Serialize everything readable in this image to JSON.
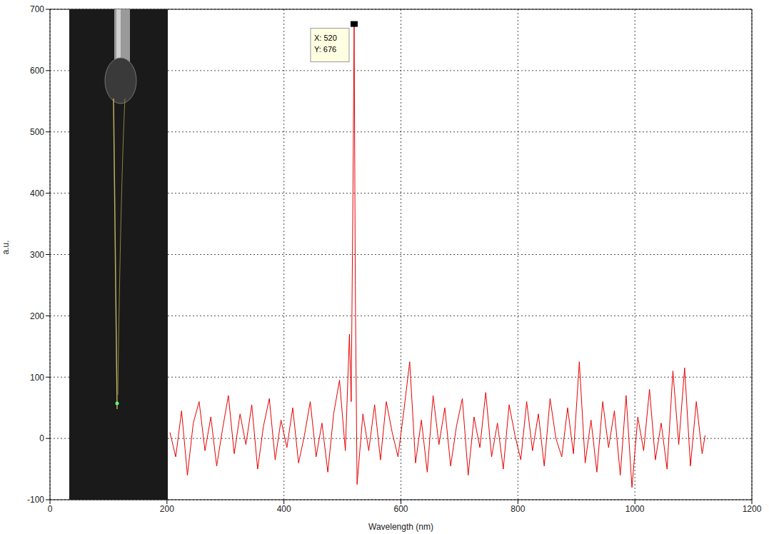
{
  "chart_data": {
    "type": "line",
    "x_label": "Wavelength (nm)",
    "y_label": "a.u.",
    "xlim": [
      0,
      1200
    ],
    "xticks": [
      0,
      200,
      400,
      600,
      800,
      1000,
      1200
    ],
    "ylim": [
      -100,
      700
    ],
    "yticks": [
      -100,
      0,
      100,
      200,
      300,
      400,
      500,
      600,
      700
    ],
    "grid": true,
    "color": "#e60000",
    "x": [
      205,
      215,
      225,
      235,
      245,
      255,
      265,
      275,
      285,
      295,
      305,
      315,
      325,
      335,
      345,
      355,
      365,
      375,
      385,
      395,
      405,
      415,
      425,
      435,
      445,
      455,
      465,
      475,
      485,
      495,
      505,
      512,
      515,
      518,
      520,
      522,
      525,
      535,
      545,
      555,
      565,
      575,
      585,
      595,
      605,
      615,
      625,
      635,
      645,
      655,
      665,
      675,
      685,
      695,
      705,
      715,
      725,
      735,
      745,
      755,
      765,
      775,
      785,
      795,
      805,
      815,
      825,
      835,
      845,
      855,
      865,
      875,
      885,
      895,
      905,
      915,
      925,
      935,
      945,
      955,
      965,
      975,
      985,
      995,
      1005,
      1015,
      1025,
      1035,
      1045,
      1055,
      1065,
      1075,
      1085,
      1095,
      1105,
      1115,
      1120
    ],
    "values": [
      10,
      -30,
      45,
      -60,
      25,
      60,
      -20,
      35,
      -45,
      15,
      70,
      -25,
      40,
      -10,
      55,
      -50,
      20,
      65,
      -35,
      30,
      -15,
      50,
      -40,
      5,
      60,
      -30,
      25,
      -55,
      40,
      95,
      -20,
      170,
      60,
      400,
      676,
      250,
      -75,
      40,
      -20,
      55,
      -35,
      60,
      10,
      -30,
      45,
      125,
      -40,
      30,
      -55,
      70,
      -10,
      50,
      -45,
      20,
      65,
      -60,
      35,
      -15,
      75,
      -30,
      25,
      -50,
      55,
      5,
      -35,
      60,
      -20,
      40,
      -45,
      65,
      0,
      -30,
      50,
      -25,
      125,
      -40,
      30,
      -55,
      60,
      -15,
      45,
      -60,
      70,
      -80,
      35,
      -20,
      80,
      -35,
      25,
      -50,
      110,
      -10,
      115,
      -45,
      60,
      -25,
      5
    ],
    "annotation": {
      "x": 520,
      "y": 676,
      "lines": [
        "X: 520",
        "Y: 676"
      ]
    }
  }
}
